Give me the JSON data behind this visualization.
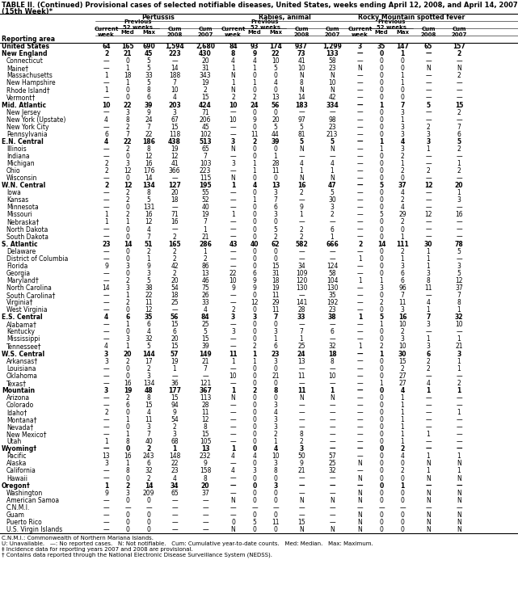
{
  "title1": "TABLE II. (Continued) Provisional cases of selected notifiable diseases, United States, weeks ending April 12, 2008, and April 14, 2007",
  "title2": "(15th Week)*",
  "rows": [
    [
      "United States",
      "64",
      "165",
      "690",
      "1,594",
      "2,680",
      "84",
      "93",
      "174",
      "937",
      "1,299",
      "3",
      "35",
      "147",
      "65",
      "157"
    ],
    [
      "New England",
      "2",
      "21",
      "45",
      "223",
      "430",
      "8",
      "9",
      "22",
      "73",
      "133",
      "—",
      "0",
      "1",
      "—",
      "2"
    ],
    [
      "Connecticut",
      "—",
      "0",
      "5",
      "—",
      "20",
      "4",
      "4",
      "10",
      "41",
      "58",
      "—",
      "0",
      "0",
      "—",
      "—"
    ],
    [
      "Maine†",
      "—",
      "1",
      "5",
      "14",
      "31",
      "1",
      "1",
      "5",
      "10",
      "23",
      "N",
      "0",
      "0",
      "N",
      "N"
    ],
    [
      "Massachusetts",
      "1",
      "18",
      "33",
      "188",
      "343",
      "N",
      "0",
      "0",
      "N",
      "N",
      "—",
      "0",
      "1",
      "—",
      "2"
    ],
    [
      "New Hampshire",
      "—",
      "1",
      "5",
      "7",
      "19",
      "1",
      "1",
      "4",
      "8",
      "10",
      "—",
      "0",
      "1",
      "—",
      "—"
    ],
    [
      "Rhode Island†",
      "1",
      "0",
      "8",
      "10",
      "2",
      "N",
      "0",
      "0",
      "N",
      "N",
      "—",
      "0",
      "0",
      "—",
      "—"
    ],
    [
      "Vermont†",
      "—",
      "0",
      "6",
      "4",
      "15",
      "2",
      "2",
      "13",
      "14",
      "42",
      "—",
      "0",
      "0",
      "—",
      "—"
    ],
    [
      "Mid. Atlantic",
      "10",
      "22",
      "39",
      "203",
      "424",
      "10",
      "24",
      "56",
      "183",
      "334",
      "—",
      "1",
      "7",
      "5",
      "15"
    ],
    [
      "New Jersey",
      "—",
      "3",
      "9",
      "3",
      "71",
      "—",
      "0",
      "0",
      "—",
      "—",
      "—",
      "0",
      "3",
      "—",
      "2"
    ],
    [
      "New York (Upstate)",
      "4",
      "8",
      "24",
      "67",
      "206",
      "10",
      "9",
      "20",
      "97",
      "98",
      "—",
      "0",
      "1",
      "—",
      "—"
    ],
    [
      "New York City",
      "—",
      "2",
      "7",
      "15",
      "45",
      "—",
      "0",
      "5",
      "5",
      "23",
      "—",
      "0",
      "3",
      "2",
      "7"
    ],
    [
      "Pennsylvania",
      "6",
      "7",
      "22",
      "118",
      "102",
      "—",
      "11",
      "44",
      "81",
      "213",
      "—",
      "0",
      "3",
      "3",
      "6"
    ],
    [
      "E.N. Central",
      "4",
      "22",
      "186",
      "438",
      "513",
      "3",
      "2",
      "39",
      "5",
      "5",
      "—",
      "1",
      "4",
      "3",
      "5"
    ],
    [
      "Illinois",
      "—",
      "2",
      "8",
      "19",
      "65",
      "N",
      "0",
      "0",
      "N",
      "N",
      "—",
      "1",
      "3",
      "1",
      "2"
    ],
    [
      "Indiana",
      "—",
      "0",
      "12",
      "12",
      "7",
      "—",
      "0",
      "1",
      "—",
      "—",
      "—",
      "0",
      "2",
      "—",
      "—"
    ],
    [
      "Michigan",
      "2",
      "3",
      "16",
      "41",
      "103",
      "3",
      "1",
      "28",
      "4",
      "4",
      "—",
      "0",
      "1",
      "—",
      "1"
    ],
    [
      "Ohio",
      "2",
      "12",
      "176",
      "366",
      "223",
      "—",
      "1",
      "11",
      "1",
      "1",
      "—",
      "0",
      "2",
      "2",
      "2"
    ],
    [
      "Wisconsin",
      "—",
      "0",
      "14",
      "—",
      "115",
      "N",
      "0",
      "0",
      "N",
      "N",
      "—",
      "0",
      "0",
      "—",
      "—"
    ],
    [
      "W.N. Central",
      "2",
      "12",
      "134",
      "127",
      "195",
      "1",
      "4",
      "13",
      "16",
      "47",
      "—",
      "5",
      "37",
      "12",
      "20"
    ],
    [
      "Iowa",
      "—",
      "2",
      "8",
      "20",
      "55",
      "—",
      "0",
      "3",
      "2",
      "5",
      "—",
      "0",
      "4",
      "—",
      "1"
    ],
    [
      "Kansas",
      "—",
      "2",
      "5",
      "18",
      "52",
      "—",
      "1",
      "7",
      "—",
      "30",
      "—",
      "0",
      "2",
      "—",
      "3"
    ],
    [
      "Minnesota",
      "—",
      "0",
      "131",
      "—",
      "40",
      "—",
      "0",
      "6",
      "9",
      "3",
      "—",
      "0",
      "4",
      "—",
      "—"
    ],
    [
      "Missouri",
      "1",
      "2",
      "16",
      "71",
      "19",
      "1",
      "0",
      "3",
      "1",
      "2",
      "—",
      "5",
      "29",
      "12",
      "16"
    ],
    [
      "Nebraska†",
      "1",
      "1",
      "12",
      "16",
      "7",
      "—",
      "0",
      "0",
      "—",
      "—",
      "—",
      "0",
      "2",
      "—",
      "—"
    ],
    [
      "North Dakota",
      "—",
      "0",
      "4",
      "—",
      "1",
      "—",
      "0",
      "5",
      "2",
      "6",
      "—",
      "0",
      "0",
      "—",
      "—"
    ],
    [
      "South Dakota",
      "—",
      "0",
      "7",
      "2",
      "21",
      "—",
      "0",
      "2",
      "2",
      "1",
      "—",
      "0",
      "1",
      "—",
      "—"
    ],
    [
      "S. Atlantic",
      "23",
      "14",
      "51",
      "165",
      "286",
      "43",
      "40",
      "62",
      "582",
      "666",
      "2",
      "14",
      "111",
      "30",
      "78"
    ],
    [
      "Delaware",
      "—",
      "0",
      "2",
      "2",
      "1",
      "—",
      "0",
      "0",
      "—",
      "—",
      "—",
      "0",
      "2",
      "1",
      "5"
    ],
    [
      "District of Columbia",
      "—",
      "0",
      "1",
      "2",
      "2",
      "—",
      "0",
      "0",
      "—",
      "—",
      "1",
      "0",
      "1",
      "1",
      "—"
    ],
    [
      "Florida",
      "9",
      "3",
      "9",
      "42",
      "86",
      "—",
      "0",
      "15",
      "34",
      "124",
      "—",
      "0",
      "3",
      "1",
      "3"
    ],
    [
      "Georgia",
      "—",
      "0",
      "3",
      "2",
      "13",
      "22",
      "6",
      "31",
      "109",
      "58",
      "—",
      "0",
      "6",
      "3",
      "5"
    ],
    [
      "Maryland†",
      "—",
      "2",
      "5",
      "20",
      "46",
      "10",
      "9",
      "18",
      "120",
      "104",
      "1",
      "1",
      "6",
      "8",
      "12"
    ],
    [
      "North Carolina",
      "14",
      "3",
      "38",
      "54",
      "75",
      "9",
      "9",
      "19",
      "130",
      "130",
      "—",
      "3",
      "96",
      "11",
      "37"
    ],
    [
      "South Carolina†",
      "—",
      "1",
      "22",
      "18",
      "26",
      "—",
      "0",
      "11",
      "—",
      "35",
      "—",
      "0",
      "7",
      "—",
      "7"
    ],
    [
      "Virginia†",
      "—",
      "2",
      "11",
      "25",
      "33",
      "—",
      "12",
      "29",
      "141",
      "192",
      "—",
      "2",
      "11",
      "4",
      "8"
    ],
    [
      "West Virginia",
      "—",
      "0",
      "12",
      "—",
      "4",
      "2",
      "0",
      "11",
      "28",
      "23",
      "—",
      "0",
      "3",
      "1",
      "1"
    ],
    [
      "E.S. Central",
      "4",
      "6",
      "35",
      "56",
      "84",
      "3",
      "3",
      "7",
      "33",
      "38",
      "1",
      "5",
      "16",
      "7",
      "32"
    ],
    [
      "Alabama†",
      "—",
      "1",
      "6",
      "15",
      "25",
      "—",
      "0",
      "0",
      "—",
      "—",
      "—",
      "1",
      "10",
      "3",
      "10"
    ],
    [
      "Kentucky",
      "—",
      "0",
      "4",
      "6",
      "5",
      "3",
      "0",
      "3",
      "7",
      "6",
      "—",
      "0",
      "2",
      "—",
      "—"
    ],
    [
      "Mississippi",
      "—",
      "3",
      "32",
      "20",
      "15",
      "—",
      "0",
      "1",
      "1",
      "—",
      "—",
      "0",
      "3",
      "1",
      "1"
    ],
    [
      "Tennessee†",
      "4",
      "1",
      "5",
      "15",
      "39",
      "—",
      "2",
      "6",
      "25",
      "32",
      "1",
      "2",
      "10",
      "3",
      "21"
    ],
    [
      "W.S. Central",
      "3",
      "20",
      "144",
      "57",
      "149",
      "11",
      "1",
      "23",
      "24",
      "18",
      "—",
      "1",
      "30",
      "6",
      "3"
    ],
    [
      "Arkansas†",
      "3",
      "2",
      "17",
      "19",
      "21",
      "1",
      "1",
      "3",
      "13",
      "8",
      "—",
      "0",
      "15",
      "2",
      "1"
    ],
    [
      "Louisiana",
      "—",
      "0",
      "2",
      "1",
      "7",
      "—",
      "0",
      "0",
      "—",
      "—",
      "—",
      "0",
      "2",
      "2",
      "1"
    ],
    [
      "Oklahoma",
      "—",
      "0",
      "3",
      "—",
      "—",
      "10",
      "0",
      "21",
      "11",
      "10",
      "—",
      "0",
      "27",
      "—",
      "—"
    ],
    [
      "Texas†",
      "—",
      "16",
      "134",
      "36",
      "121",
      "—",
      "0",
      "0",
      "—",
      "—",
      "—",
      "1",
      "27",
      "4",
      "2"
    ],
    [
      "Mountain",
      "3",
      "19",
      "48",
      "177",
      "367",
      "1",
      "2",
      "8",
      "11",
      "1",
      "—",
      "0",
      "4",
      "1",
      "1"
    ],
    [
      "Arizona",
      "—",
      "2",
      "8",
      "15",
      "113",
      "N",
      "0",
      "0",
      "N",
      "N",
      "—",
      "0",
      "1",
      "—",
      "—"
    ],
    [
      "Colorado",
      "—",
      "6",
      "15",
      "94",
      "28",
      "—",
      "0",
      "3",
      "—",
      "—",
      "—",
      "0",
      "1",
      "—",
      "—"
    ],
    [
      "Idaho†",
      "2",
      "0",
      "4",
      "9",
      "11",
      "—",
      "0",
      "4",
      "—",
      "—",
      "—",
      "0",
      "1",
      "—",
      "1"
    ],
    [
      "Montana†",
      "—",
      "1",
      "11",
      "54",
      "12",
      "—",
      "0",
      "3",
      "—",
      "—",
      "—",
      "0",
      "1",
      "—",
      "—"
    ],
    [
      "Nevada†",
      "—",
      "0",
      "3",
      "2",
      "8",
      "—",
      "0",
      "3",
      "—",
      "—",
      "—",
      "0",
      "1",
      "—",
      "—"
    ],
    [
      "New Mexico†",
      "—",
      "1",
      "7",
      "3",
      "15",
      "—",
      "0",
      "2",
      "8",
      "—",
      "—",
      "0",
      "1",
      "1",
      "—"
    ],
    [
      "Utah",
      "1",
      "8",
      "40",
      "68",
      "105",
      "—",
      "0",
      "1",
      "2",
      "—",
      "—",
      "0",
      "1",
      "—",
      "—"
    ],
    [
      "Wyoming†",
      "—",
      "0",
      "2",
      "1",
      "13",
      "1",
      "0",
      "4",
      "3",
      "—",
      "—",
      "0",
      "2",
      "—",
      "—"
    ],
    [
      "Pacific",
      "13",
      "16",
      "243",
      "148",
      "232",
      "4",
      "4",
      "10",
      "50",
      "57",
      "—",
      "0",
      "4",
      "1",
      "1"
    ],
    [
      "Alaska",
      "3",
      "1",
      "6",
      "22",
      "9",
      "—",
      "0",
      "3",
      "9",
      "25",
      "N",
      "0",
      "0",
      "N",
      "N"
    ],
    [
      "California",
      "—",
      "8",
      "32",
      "23",
      "158",
      "4",
      "3",
      "8",
      "21",
      "32",
      "—",
      "0",
      "2",
      "1",
      "1"
    ],
    [
      "Hawaii",
      "—",
      "0",
      "2",
      "4",
      "8",
      "—",
      "0",
      "0",
      "—",
      "—",
      "N",
      "0",
      "0",
      "N",
      "N"
    ],
    [
      "Oregon†",
      "1",
      "2",
      "14",
      "34",
      "20",
      "—",
      "0",
      "3",
      "—",
      "—",
      "—",
      "0",
      "1",
      "—",
      "—"
    ],
    [
      "Washington",
      "9",
      "3",
      "209",
      "65",
      "37",
      "—",
      "0",
      "0",
      "—",
      "—",
      "N",
      "0",
      "0",
      "N",
      "N"
    ],
    [
      "American Samoa",
      "—",
      "0",
      "0",
      "—",
      "—",
      "N",
      "0",
      "0",
      "N",
      "N",
      "N",
      "0",
      "0",
      "N",
      "N"
    ],
    [
      "C.N.M.I.",
      "—",
      "—",
      "—",
      "—",
      "—",
      "—",
      "—",
      "—",
      "—",
      "—",
      "—",
      "—",
      "—",
      "—",
      "—"
    ],
    [
      "Guam",
      "—",
      "0",
      "0",
      "—",
      "—",
      "—",
      "0",
      "0",
      "—",
      "—",
      "N",
      "0",
      "0",
      "N",
      "N"
    ],
    [
      "Puerto Rico",
      "—",
      "0",
      "0",
      "—",
      "—",
      "0",
      "5",
      "11",
      "15",
      "—",
      "N",
      "0",
      "0",
      "N",
      "N"
    ],
    [
      "U.S. Virgin Islands",
      "—",
      "0",
      "0",
      "—",
      "—",
      "N",
      "0",
      "0",
      "N",
      "N",
      "N",
      "0",
      "0",
      "N",
      "N"
    ]
  ],
  "bold_rows": [
    0,
    1,
    8,
    13,
    19,
    27,
    37,
    42,
    47,
    55,
    60
  ],
  "group_rows": [
    1,
    8,
    13,
    19,
    27,
    37,
    42,
    47,
    55,
    60
  ],
  "footer_lines": [
    "C.N.M.I.: Commonwealth of Northern Mariana Islands.",
    "U: Unavailable.   —: No reported cases.   N: Not notifiable.   Cum: Cumulative year-to-date counts.   Med: Median.   Max: Maximum.",
    "‡ Incidence data for reporting years 2007 and 2008 are provisional.",
    "† Contains data reported through the National Electronic Disease Surveillance System (NEDSS)."
  ]
}
